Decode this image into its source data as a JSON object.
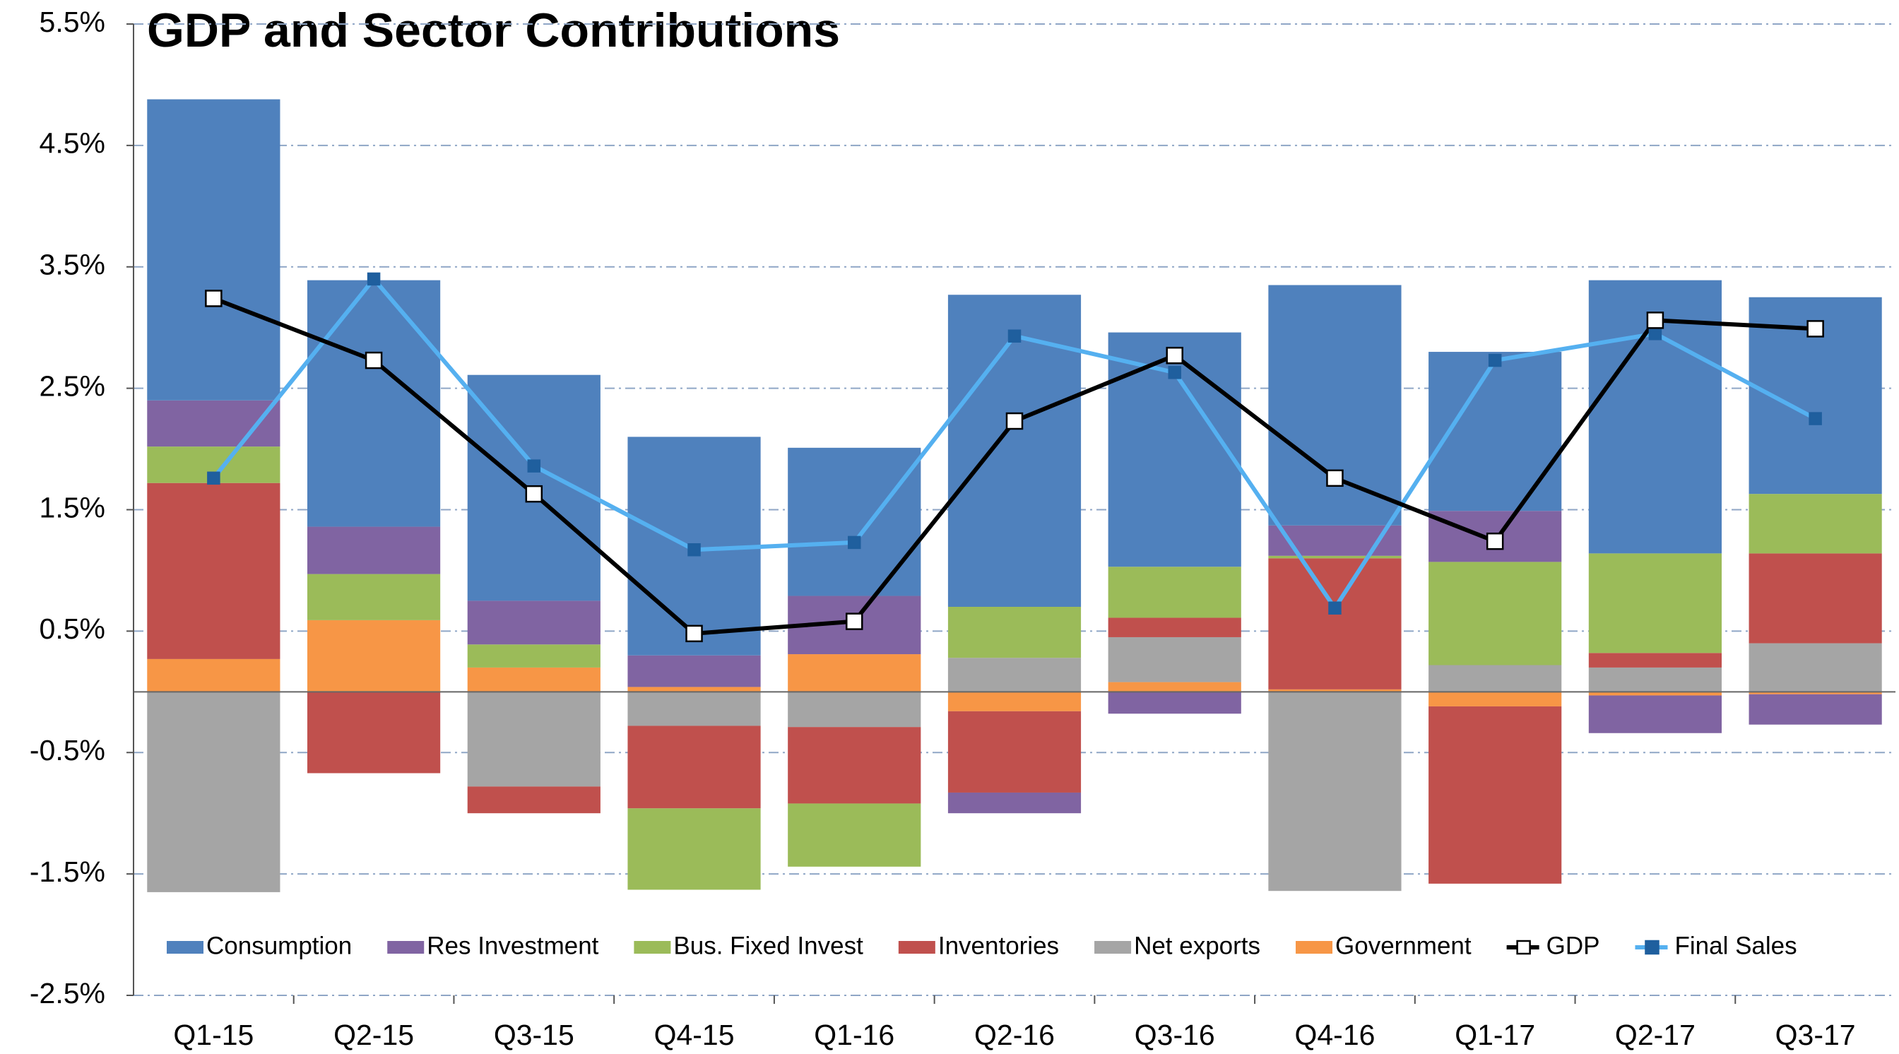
{
  "chart_data": {
    "type": "bar",
    "title": "GDP and Sector Contributions",
    "categories": [
      "Q1-15",
      "Q2-15",
      "Q3-15",
      "Q4-15",
      "Q1-16",
      "Q2-16",
      "Q3-16",
      "Q4-16",
      "Q1-17",
      "Q2-17",
      "Q3-17"
    ],
    "series": [
      {
        "name": "Consumption",
        "color": "#4f81bd",
        "values": [
          2.48,
          2.03,
          1.86,
          1.8,
          1.22,
          2.57,
          1.93,
          1.98,
          1.31,
          2.25,
          1.62
        ]
      },
      {
        "name": "Res Investment",
        "color": "#8064a2",
        "values": [
          0.38,
          0.39,
          0.36,
          0.26,
          0.48,
          -0.17,
          -0.18,
          0.25,
          0.42,
          -0.31,
          -0.25
        ]
      },
      {
        "name": "Bus. Fixed Invest",
        "color": "#9bbb59",
        "values": [
          0.3,
          0.38,
          0.19,
          -0.67,
          -0.52,
          0.42,
          0.42,
          0.02,
          0.85,
          0.82,
          0.49
        ]
      },
      {
        "name": "Inventories",
        "color": "#c0504d",
        "values": [
          1.45,
          -0.67,
          -0.22,
          -0.68,
          -0.63,
          -0.67,
          0.16,
          1.08,
          -1.46,
          0.12,
          0.74
        ]
      },
      {
        "name": "Net exports",
        "color": "#a5a5a5",
        "values": [
          -1.65,
          0,
          -0.78,
          -0.28,
          -0.29,
          0.28,
          0.37,
          -1.64,
          0.22,
          0.2,
          0.4
        ]
      },
      {
        "name": "Government",
        "color": "#f79646",
        "values": [
          0.27,
          0.59,
          0.2,
          0.04,
          0.31,
          -0.16,
          0.08,
          0.02,
          -0.12,
          -0.03,
          -0.02
        ]
      },
      {
        "name": "GDP",
        "type": "line",
        "color": "#000000",
        "marker_color": "#ffffff",
        "values": [
          3.24,
          2.73,
          1.63,
          0.48,
          0.58,
          2.23,
          2.77,
          1.76,
          1.24,
          3.06,
          2.99
        ]
      },
      {
        "name": "Final Sales",
        "type": "line",
        "color": "#55b0f0",
        "marker_color": "#1f5f9e",
        "values": [
          1.76,
          3.4,
          1.86,
          1.17,
          1.23,
          2.93,
          2.63,
          0.69,
          2.73,
          2.95,
          2.25
        ]
      }
    ],
    "stack_order": [
      "Government",
      "Net exports",
      "Inventories",
      "Bus. Fixed Invest",
      "Res Investment",
      "Consumption"
    ],
    "ylim": [
      -2.5,
      5.5
    ],
    "yticks": [
      {
        "value": -2.5,
        "label": "-2.5%"
      },
      {
        "value": -1.5,
        "label": "-1.5%"
      },
      {
        "value": -0.5,
        "label": "-0.5%"
      },
      {
        "value": 0.5,
        "label": "0.5%"
      },
      {
        "value": 1.5,
        "label": "1.5%"
      },
      {
        "value": 2.5,
        "label": "2.5%"
      },
      {
        "value": 3.5,
        "label": "3.5%"
      },
      {
        "value": 4.5,
        "label": "4.5%"
      },
      {
        "value": 5.5,
        "label": "5.5%"
      }
    ],
    "grid": true,
    "legend": "bottom"
  }
}
